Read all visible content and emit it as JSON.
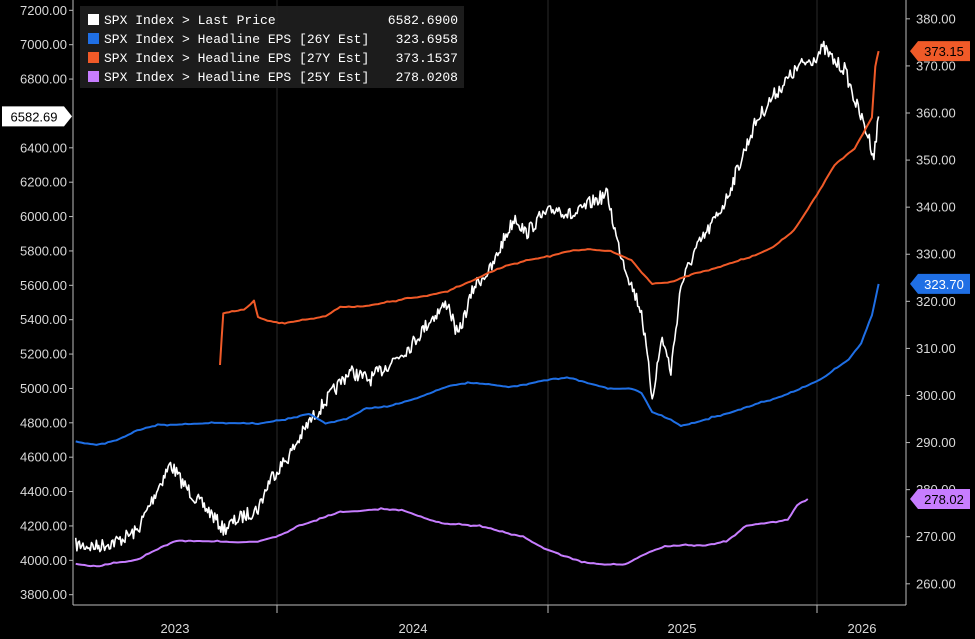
{
  "chart_data": {
    "type": "line",
    "x_ticks": [
      "2023",
      "2024",
      "2025",
      "2026"
    ],
    "left_axis": {
      "range": [
        3740,
        7260
      ],
      "ticks": [
        "3800.00",
        "4000.00",
        "4200.00",
        "4400.00",
        "4600.00",
        "4800.00",
        "5000.00",
        "5200.00",
        "5400.00",
        "5600.00",
        "5800.00",
        "6000.00",
        "6200.00",
        "6400.00",
        "6800.00",
        "7000.00",
        "7200.00"
      ]
    },
    "right_axis": {
      "range": [
        255.5,
        384
      ],
      "ticks": [
        "260.00",
        "270.00",
        "280.00",
        "290.00",
        "300.00",
        "310.00",
        "320.00",
        "330.00",
        "340.00",
        "350.00",
        "360.00",
        "370.00",
        "380.00"
      ]
    },
    "legend": [
      {
        "label": "SPX Index > Last Price",
        "value": "6582.6900",
        "color": "#ffffff"
      },
      {
        "label": "SPX Index > Headline EPS [26Y Est]",
        "value": "323.6958",
        "color": "#1f6fe5"
      },
      {
        "label": "SPX Index > Headline EPS [27Y Est]",
        "value": "373.1537",
        "color": "#f05a28"
      },
      {
        "label": "SPX Index > Headline EPS [25Y Est]",
        "value": "278.0208",
        "color": "#c77dff"
      }
    ],
    "last_value_tags": {
      "spx": "6582.69",
      "eps26": "323.70",
      "eps27": "373.15",
      "eps25": "278.02"
    },
    "series": [
      {
        "key": "spx",
        "axis": "left",
        "color": "#ffffff",
        "points": [
          [
            "2022-10-01",
            4090
          ],
          [
            "2022-11-01",
            4080
          ],
          [
            "2022-12-01",
            4110
          ],
          [
            "2023-01-01",
            4170
          ],
          [
            "2023-02-01",
            4420
          ],
          [
            "2023-02-20",
            4560
          ],
          [
            "2023-03-10",
            4450
          ],
          [
            "2023-04-01",
            4350
          ],
          [
            "2023-04-20",
            4280
          ],
          [
            "2023-05-10",
            4180
          ],
          [
            "2023-06-01",
            4240
          ],
          [
            "2023-07-01",
            4300
          ],
          [
            "2023-07-20",
            4480
          ],
          [
            "2023-08-15",
            4600
          ],
          [
            "2023-09-15",
            4800
          ],
          [
            "2023-10-15",
            4950
          ],
          [
            "2023-11-15",
            5100
          ],
          [
            "2023-12-15",
            5050
          ],
          [
            "2024-01-15",
            5150
          ],
          [
            "2024-02-15",
            5250
          ],
          [
            "2024-03-15",
            5400
          ],
          [
            "2024-04-10",
            5500
          ],
          [
            "2024-04-25",
            5300
          ],
          [
            "2024-05-20",
            5600
          ],
          [
            "2024-06-15",
            5700
          ],
          [
            "2024-07-01",
            5850
          ],
          [
            "2024-07-20",
            6000
          ],
          [
            "2024-08-05",
            5900
          ],
          [
            "2024-08-25",
            5990
          ],
          [
            "2024-09-20",
            6050
          ],
          [
            "2024-10-15",
            6000
          ],
          [
            "2024-11-10",
            6080
          ],
          [
            "2024-12-05",
            6130
          ],
          [
            "2024-12-20",
            5850
          ],
          [
            "2025-01-10",
            5600
          ],
          [
            "2025-01-25",
            5450
          ],
          [
            "2025-02-10",
            4950
          ],
          [
            "2025-02-25",
            5300
          ],
          [
            "2025-03-10",
            5100
          ],
          [
            "2025-03-25",
            5600
          ],
          [
            "2025-04-15",
            5800
          ],
          [
            "2025-05-10",
            5950
          ],
          [
            "2025-06-01",
            6100
          ],
          [
            "2025-06-20",
            6300
          ],
          [
            "2025-07-15",
            6550
          ],
          [
            "2025-08-10",
            6700
          ],
          [
            "2025-09-01",
            6800
          ],
          [
            "2025-09-20",
            6880
          ],
          [
            "2025-10-10",
            6920
          ],
          [
            "2025-10-25",
            6980
          ],
          [
            "2025-11-10",
            6900
          ],
          [
            "2025-11-25",
            6860
          ],
          [
            "2025-12-10",
            6680
          ],
          [
            "2026-01-01",
            6450
          ],
          [
            "2026-01-08",
            6350
          ],
          [
            "2026-01-15",
            6582.69
          ]
        ]
      },
      {
        "key": "eps26",
        "axis": "right",
        "color": "#1f6fe5",
        "points": [
          [
            "2022-10-01",
            290.2
          ],
          [
            "2022-11-01",
            289.5
          ],
          [
            "2022-12-01",
            290.5
          ],
          [
            "2023-01-01",
            292.5
          ],
          [
            "2023-02-01",
            293.8
          ],
          [
            "2023-03-01",
            293.8
          ],
          [
            "2023-05-01",
            294.2
          ],
          [
            "2023-07-01",
            294
          ],
          [
            "2023-08-15",
            295
          ],
          [
            "2023-09-15",
            296.2
          ],
          [
            "2023-10-10",
            294.1
          ],
          [
            "2023-11-10",
            295
          ],
          [
            "2023-12-10",
            297.2
          ],
          [
            "2024-01-10",
            297.6
          ],
          [
            "2024-02-10",
            298.8
          ],
          [
            "2024-03-10",
            300.2
          ],
          [
            "2024-04-10",
            302
          ],
          [
            "2024-05-10",
            302.7
          ],
          [
            "2024-06-10",
            302.4
          ],
          [
            "2024-07-10",
            301.8
          ],
          [
            "2024-08-10",
            302.5
          ],
          [
            "2024-09-10",
            303.5
          ],
          [
            "2024-10-10",
            303.8
          ],
          [
            "2024-11-10",
            302.5
          ],
          [
            "2024-12-10",
            301.4
          ],
          [
            "2025-01-10",
            301.5
          ],
          [
            "2025-01-25",
            300.6
          ],
          [
            "2025-02-10",
            296.5
          ],
          [
            "2025-03-10",
            294.8
          ],
          [
            "2025-03-25",
            293.6
          ],
          [
            "2025-04-10",
            294
          ],
          [
            "2025-05-10",
            295.3
          ],
          [
            "2025-06-10",
            296.5
          ],
          [
            "2025-07-10",
            298
          ],
          [
            "2025-08-10",
            299.2
          ],
          [
            "2025-09-10",
            300.8
          ],
          [
            "2025-10-10",
            302.7
          ],
          [
            "2025-10-25",
            303.8
          ],
          [
            "2025-11-10",
            305.5
          ],
          [
            "2025-12-01",
            307.6
          ],
          [
            "2025-12-20",
            311.2
          ],
          [
            "2026-01-05",
            317
          ],
          [
            "2026-01-15",
            323.6958
          ]
        ]
      },
      {
        "key": "eps27",
        "axis": "right",
        "color": "#f05a28",
        "points": [
          [
            "2023-05-05",
            306.5
          ],
          [
            "2023-05-10",
            317.5
          ],
          [
            "2023-06-10",
            318.2
          ],
          [
            "2023-06-25",
            320
          ],
          [
            "2023-07-01",
            316.6
          ],
          [
            "2023-07-20",
            315.7
          ],
          [
            "2023-08-10",
            315.4
          ],
          [
            "2023-09-10",
            316.1
          ],
          [
            "2023-10-10",
            316.8
          ],
          [
            "2023-11-01",
            318.8
          ],
          [
            "2023-12-01",
            318.8
          ],
          [
            "2024-01-10",
            319.8
          ],
          [
            "2024-02-10",
            320.6
          ],
          [
            "2024-03-10",
            321.2
          ],
          [
            "2024-04-10",
            322.2
          ],
          [
            "2024-05-10",
            323.9
          ],
          [
            "2024-06-10",
            326
          ],
          [
            "2024-07-10",
            327.7
          ],
          [
            "2024-08-10",
            328.8
          ],
          [
            "2024-09-10",
            329.6
          ],
          [
            "2024-10-10",
            330.8
          ],
          [
            "2024-11-10",
            331
          ],
          [
            "2024-12-10",
            330.6
          ],
          [
            "2025-01-10",
            328.8
          ],
          [
            "2025-01-25",
            326.2
          ],
          [
            "2025-02-10",
            323.8
          ],
          [
            "2025-03-10",
            324
          ],
          [
            "2025-04-10",
            325.8
          ],
          [
            "2025-05-10",
            326.8
          ],
          [
            "2025-06-10",
            328.2
          ],
          [
            "2025-07-10",
            329.5
          ],
          [
            "2025-08-10",
            331.5
          ],
          [
            "2025-09-10",
            335
          ],
          [
            "2025-10-10",
            341.5
          ],
          [
            "2025-11-10",
            349
          ],
          [
            "2025-12-10",
            352.5
          ],
          [
            "2026-01-05",
            359
          ],
          [
            "2026-01-10",
            370
          ],
          [
            "2026-01-15",
            373.1537
          ]
        ]
      },
      {
        "key": "eps25",
        "axis": "right",
        "color": "#c77dff",
        "points": [
          [
            "2022-10-01",
            264.2
          ],
          [
            "2022-11-01",
            263.6
          ],
          [
            "2022-12-01",
            264.5
          ],
          [
            "2023-01-01",
            265
          ],
          [
            "2023-02-01",
            267.5
          ],
          [
            "2023-03-01",
            269.2
          ],
          [
            "2023-05-01",
            269
          ],
          [
            "2023-06-01",
            268.8
          ],
          [
            "2023-07-01",
            269
          ],
          [
            "2023-08-01",
            270.2
          ],
          [
            "2023-09-01",
            272.3
          ],
          [
            "2023-10-01",
            273.8
          ],
          [
            "2023-11-01",
            275.2
          ],
          [
            "2023-12-01",
            275.5
          ],
          [
            "2024-01-01",
            275.9
          ],
          [
            "2024-02-01",
            275.7
          ],
          [
            "2024-03-01",
            274.2
          ],
          [
            "2024-04-01",
            272.8
          ],
          [
            "2024-05-01",
            272.6
          ],
          [
            "2024-06-01",
            272.2
          ],
          [
            "2024-07-01",
            271
          ],
          [
            "2024-08-01",
            270
          ],
          [
            "2024-09-01",
            267.5
          ],
          [
            "2024-10-01",
            266
          ],
          [
            "2024-11-01",
            264.5
          ],
          [
            "2024-12-01",
            264.1
          ],
          [
            "2025-01-01",
            264.1
          ],
          [
            "2025-02-01",
            266.5
          ],
          [
            "2025-03-01",
            267.9
          ],
          [
            "2025-04-01",
            268.2
          ],
          [
            "2025-05-01",
            268.2
          ],
          [
            "2025-06-01",
            269
          ],
          [
            "2025-07-01",
            272.3
          ],
          [
            "2025-08-01",
            273
          ],
          [
            "2025-09-01",
            273.5
          ],
          [
            "2025-09-15",
            276.8
          ],
          [
            "2025-10-01",
            278.02
          ]
        ]
      }
    ]
  }
}
